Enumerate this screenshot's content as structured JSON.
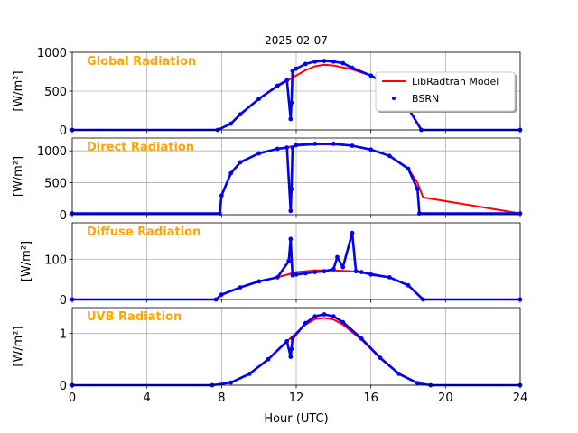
{
  "figure": {
    "title": "2025-02-07",
    "xlabel": "Hour (UTC)",
    "xticks": [
      "0",
      "4",
      "8",
      "12",
      "16",
      "20",
      "24"
    ],
    "legend": {
      "model_label": "LibRadtran Model",
      "obs_label": "BSRN",
      "placement": "upper-right of first panel"
    },
    "colors": {
      "model": "#ff0000",
      "obs": "#0000ff",
      "panel_label": "#FFA500",
      "grid": "#b0b0b0"
    }
  },
  "chart_data": [
    {
      "type": "line",
      "title": "Global Radiation",
      "ylabel": "[W/m²]",
      "ylim": [
        0,
        1000
      ],
      "xlim": [
        0,
        24
      ],
      "yticks": [
        "0",
        "500",
        "1000"
      ],
      "grid": true,
      "series": [
        {
          "name": "LibRadtran Model",
          "kind": "line",
          "x": [
            0,
            7.8,
            8.5,
            9,
            10,
            11,
            12,
            12.5,
            13,
            13.5,
            14,
            15,
            16,
            17,
            18,
            18.7,
            24
          ],
          "values": [
            0,
            0,
            80,
            200,
            400,
            560,
            700,
            770,
            820,
            840,
            830,
            780,
            700,
            540,
            280,
            0,
            0
          ]
        },
        {
          "name": "BSRN",
          "kind": "scatter",
          "x": [
            0,
            7.8,
            8.5,
            9,
            10,
            11,
            11.5,
            11.7,
            11.75,
            11.8,
            12,
            12.5,
            13,
            13.5,
            14,
            14.5,
            15,
            16,
            17,
            17.5,
            18,
            18.7,
            24
          ],
          "values": [
            0,
            0,
            80,
            200,
            400,
            570,
            640,
            140,
            350,
            760,
            790,
            850,
            880,
            890,
            880,
            860,
            800,
            700,
            570,
            470,
            280,
            0,
            0
          ]
        }
      ]
    },
    {
      "type": "line",
      "title": "Direct Radiation",
      "ylabel": "[W/m²]",
      "ylim": [
        0,
        1200
      ],
      "xlim": [
        0,
        24
      ],
      "yticks": [
        "0",
        "500",
        "1000"
      ],
      "grid": true,
      "series": [
        {
          "name": "LibRadtran Model",
          "kind": "line",
          "x": [
            0,
            7.9,
            8.0,
            8.5,
            9,
            10,
            11,
            12,
            13,
            14,
            15,
            16,
            17,
            18,
            18.5,
            18.8,
            24
          ],
          "values": [
            20,
            20,
            300,
            650,
            820,
            960,
            1030,
            1080,
            1100,
            1100,
            1080,
            1020,
            920,
            720,
            500,
            270,
            20
          ]
        },
        {
          "name": "BSRN",
          "kind": "scatter",
          "x": [
            0,
            7.9,
            8.0,
            8.5,
            9,
            10,
            11,
            11.5,
            11.7,
            11.75,
            11.8,
            12,
            13,
            14,
            15,
            16,
            17,
            18,
            18.5,
            18.6,
            24
          ],
          "values": [
            20,
            20,
            300,
            650,
            820,
            960,
            1030,
            1050,
            60,
            400,
            1050,
            1090,
            1110,
            1110,
            1080,
            1020,
            920,
            720,
            400,
            20,
            20
          ]
        }
      ]
    },
    {
      "type": "line",
      "title": "Diffuse Radiation",
      "ylabel": "[W/m²]",
      "ylim": [
        0,
        190
      ],
      "xlim": [
        0,
        24
      ],
      "yticks": [
        "0",
        "100"
      ],
      "grid": true,
      "series": [
        {
          "name": "LibRadtran Model",
          "kind": "line",
          "x": [
            0,
            7.7,
            8,
            9,
            10,
            11,
            12,
            13,
            14,
            15,
            16,
            17,
            18,
            18.8,
            24
          ],
          "values": [
            0,
            0,
            12,
            30,
            45,
            55,
            68,
            72,
            72,
            70,
            64,
            55,
            35,
            0,
            0
          ]
        },
        {
          "name": "BSRN",
          "kind": "scatter",
          "x": [
            0,
            7.7,
            8,
            9,
            10,
            11,
            11.6,
            11.7,
            11.8,
            12,
            12.5,
            13,
            13.5,
            14,
            14.2,
            14.5,
            15,
            15.2,
            15.5,
            16,
            17,
            18,
            18.8,
            24
          ],
          "values": [
            0,
            0,
            12,
            30,
            45,
            55,
            95,
            150,
            60,
            62,
            65,
            68,
            70,
            75,
            105,
            80,
            165,
            70,
            68,
            62,
            55,
            35,
            0,
            0
          ]
        }
      ]
    },
    {
      "type": "line",
      "title": "UVB Radiation",
      "ylabel": "[W/m²]",
      "ylim": [
        0,
        1.5
      ],
      "xlim": [
        0,
        24
      ],
      "yticks": [
        "0",
        "1"
      ],
      "grid": true,
      "series": [
        {
          "name": "LibRadtran Model",
          "kind": "line",
          "x": [
            0,
            7.5,
            8.5,
            9.5,
            10.5,
            11.5,
            12.5,
            13,
            13.5,
            14,
            14.5,
            15.5,
            16.5,
            17.5,
            18.5,
            19.2,
            24
          ],
          "values": [
            0,
            0,
            0.05,
            0.22,
            0.5,
            0.85,
            1.17,
            1.28,
            1.3,
            1.27,
            1.17,
            0.88,
            0.52,
            0.22,
            0.04,
            0,
            0
          ]
        },
        {
          "name": "BSRN",
          "kind": "scatter",
          "x": [
            0,
            7.5,
            8.5,
            9.5,
            10.5,
            11.5,
            11.7,
            11.75,
            11.8,
            12.5,
            13,
            13.5,
            14,
            14.5,
            15.5,
            16.5,
            17.5,
            18.5,
            19.2,
            24
          ],
          "values": [
            0,
            0,
            0.05,
            0.22,
            0.5,
            0.85,
            0.55,
            0.7,
            0.9,
            1.2,
            1.33,
            1.37,
            1.33,
            1.22,
            0.9,
            0.53,
            0.22,
            0.04,
            0,
            0
          ]
        }
      ]
    }
  ]
}
